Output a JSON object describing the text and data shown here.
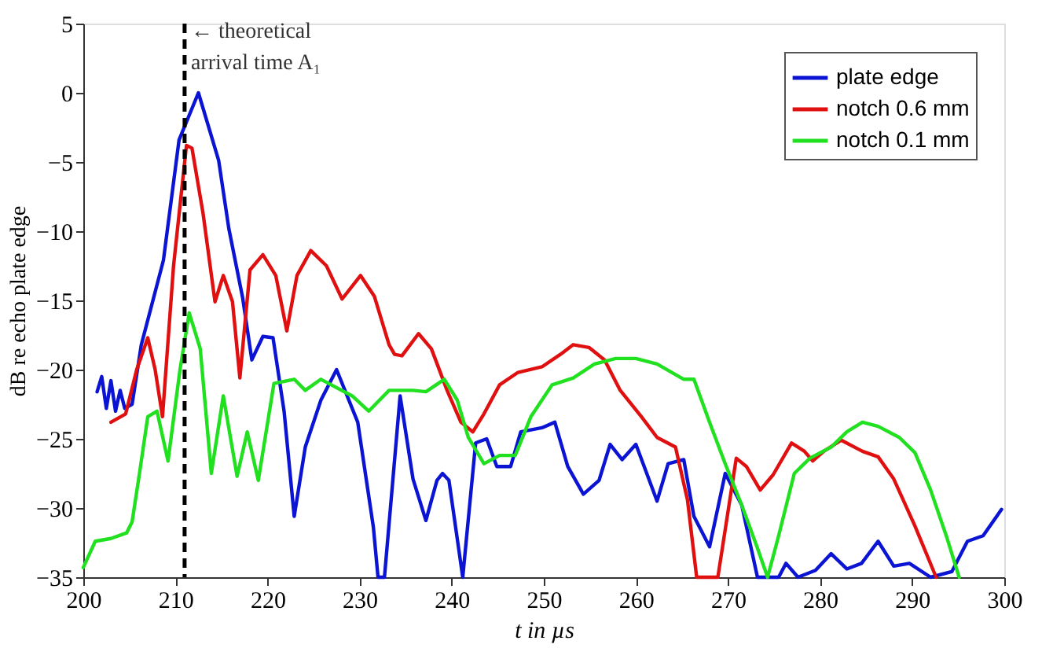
{
  "chart_data": {
    "type": "line",
    "xlabel": "t in µs",
    "ylabel": "dB re echo plate edge",
    "xlim": [
      200,
      300
    ],
    "xticks": [
      200,
      210,
      220,
      230,
      240,
      250,
      260,
      270,
      280,
      290,
      300
    ],
    "ylim": [
      -35,
      5
    ],
    "yticks": [
      -35,
      -30,
      -25,
      -20,
      -15,
      -10,
      -5,
      0,
      5
    ],
    "grid": false,
    "legend": "top right",
    "line_style": "solid",
    "marker": "none",
    "ref_lines": [
      {
        "axis": "x",
        "value": 211,
        "label": "← theoretical\narrival time A₁",
        "color": "#000000",
        "line_style": "dashed"
      }
    ],
    "series": [
      {
        "name": "plate edge",
        "color": "#0a14d2",
        "x": [
          201.5,
          202,
          202.5,
          203,
          203.5,
          204,
          204.5,
          205.3,
          206.3,
          208.7,
          210.4,
          212.5,
          214.7,
          215.8,
          217.3,
          218.3,
          219.5,
          220.6,
          221.8,
          222.9,
          224.1,
          225.8,
          227.5,
          229.8,
          231.5,
          232,
          232.7,
          234.4,
          235.8,
          237.2,
          238.4,
          239,
          239.7,
          241.2,
          242.6,
          243.8,
          244.9,
          246.4,
          247.5,
          249.8,
          251.2,
          252.6,
          254.3,
          256,
          257.2,
          258.5,
          260,
          260.9,
          262.3,
          263.5,
          265.2,
          266.3,
          268,
          269.7,
          271.5,
          273.2,
          275.5,
          276.3,
          277.6,
          279.5,
          281.2,
          282.9,
          284.5,
          286.3,
          288,
          289.7,
          292,
          294.3,
          296,
          297.7,
          299.7
        ],
        "values": [
          -21.6,
          -20.5,
          -22.8,
          -20.8,
          -23,
          -21.5,
          -22.8,
          -22.5,
          -18.2,
          -12.1,
          -3.4,
          0,
          -4.9,
          -9.8,
          -14.8,
          -19.3,
          -17.6,
          -17.7,
          -23,
          -30.6,
          -25.6,
          -22.2,
          -20,
          -23.8,
          -31.4,
          -35,
          -35,
          -21.9,
          -27.9,
          -30.9,
          -28,
          -27.5,
          -28,
          -35,
          -25.3,
          -25,
          -27,
          -27,
          -24.5,
          -24.2,
          -23.8,
          -27,
          -29,
          -28,
          -25.4,
          -26.5,
          -25.4,
          -27,
          -29.5,
          -26.8,
          -26.5,
          -30.6,
          -32.8,
          -27.5,
          -29.8,
          -35,
          -35,
          -34,
          -35,
          -34.5,
          -33.3,
          -34.4,
          -34,
          -32.4,
          -34.2,
          -34,
          -35,
          -34.6,
          -32.4,
          -32,
          -30.1
        ]
      },
      {
        "name": "notch 0.6 mm",
        "color": "#e01010",
        "x": [
          203,
          204.6,
          205.8,
          207,
          207.8,
          208.6,
          209.8,
          211.2,
          211.8,
          213,
          214.3,
          215.2,
          216.2,
          217,
          218.1,
          219.5,
          220.9,
          222.1,
          223.2,
          224.7,
          226.4,
          228.1,
          230.1,
          231.6,
          233.2,
          233.8,
          234.6,
          236.4,
          237.8,
          239.5,
          241,
          242.3,
          243.5,
          245.2,
          247.2,
          249.8,
          251.8,
          253.2,
          254.9,
          256.6,
          258.3,
          260.6,
          262.3,
          264.3,
          265.6,
          266.6,
          268.9,
          270.9,
          272,
          273.5,
          274.9,
          276.9,
          278.3,
          279.2,
          280.4,
          282.3,
          284.6,
          286.3,
          288,
          290.3,
          292.6
        ],
        "values": [
          -23.8,
          -23.2,
          -20,
          -17.7,
          -20,
          -23.4,
          -12.5,
          -3.8,
          -4,
          -8.7,
          -15.1,
          -13.2,
          -15.1,
          -20.6,
          -12.8,
          -11.7,
          -13.2,
          -17.2,
          -13.2,
          -11.4,
          -12.5,
          -14.9,
          -13.2,
          -14.7,
          -18.2,
          -18.9,
          -19,
          -17.4,
          -18.5,
          -21.5,
          -23.8,
          -24.5,
          -23.2,
          -21.1,
          -20.2,
          -19.8,
          -18.9,
          -18.2,
          -18.4,
          -19.3,
          -21.5,
          -23.4,
          -24.9,
          -25.6,
          -29.4,
          -35,
          -35,
          -26.4,
          -27,
          -28.7,
          -27.6,
          -25.3,
          -25.9,
          -26.6,
          -25.9,
          -25.1,
          -25.9,
          -26.3,
          -27.9,
          -31.3,
          -35
        ]
      },
      {
        "name": "notch 0.1 mm",
        "color": "#20e020",
        "x": [
          200,
          201.3,
          203,
          204.7,
          205.3,
          206.1,
          207,
          208,
          209.2,
          210.5,
          211.5,
          212.7,
          213.9,
          215.2,
          216.7,
          217.8,
          219,
          220.7,
          222.9,
          224.1,
          225.8,
          229.2,
          231,
          233.2,
          235.8,
          237.2,
          239.2,
          240.6,
          241.8,
          243.5,
          245.2,
          246.9,
          248.6,
          250.9,
          253.2,
          255.5,
          257.8,
          260,
          262.3,
          265.2,
          266.3,
          268,
          269.7,
          271.5,
          273.2,
          274.3,
          275.5,
          277.2,
          278.9,
          281.2,
          282.9,
          284.6,
          286.3,
          288.6,
          290.3,
          292,
          293.7,
          295.1
        ],
        "values": [
          -34.3,
          -32.4,
          -32.2,
          -31.8,
          -31,
          -27.5,
          -23.4,
          -23,
          -26.6,
          -20,
          -15.9,
          -18.5,
          -27.5,
          -21.9,
          -27.7,
          -24.5,
          -28,
          -21,
          -20.7,
          -21.5,
          -20.7,
          -21.9,
          -23,
          -21.5,
          -21.5,
          -21.6,
          -20.7,
          -22.2,
          -24.9,
          -26.8,
          -26.2,
          -26.2,
          -23.4,
          -21.1,
          -20.6,
          -19.6,
          -19.2,
          -19.2,
          -19.6,
          -20.7,
          -20.7,
          -23.8,
          -26.8,
          -29.8,
          -32.9,
          -35,
          -32,
          -27.5,
          -26.4,
          -25.6,
          -24.5,
          -23.8,
          -24.1,
          -24.9,
          -26,
          -28.7,
          -32,
          -35
        ]
      }
    ]
  }
}
